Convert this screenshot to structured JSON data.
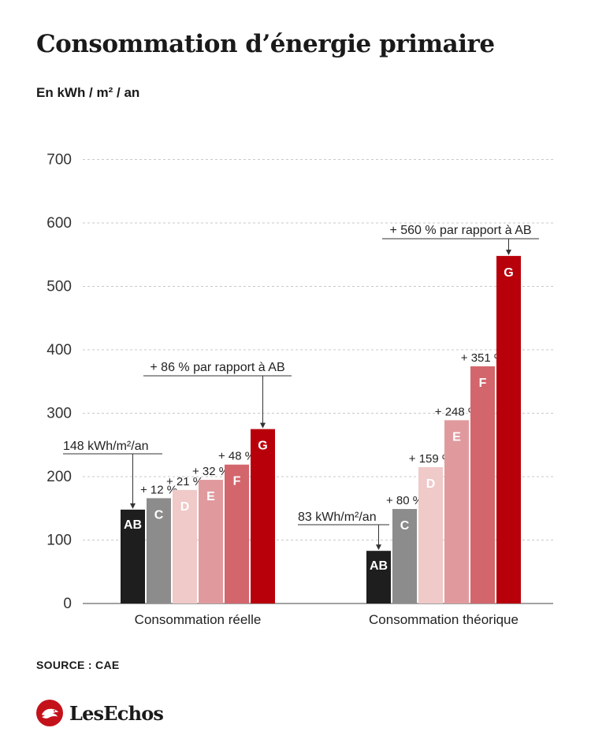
{
  "header": {
    "title": "Consommation d’énergie primaire",
    "subtitle": "En kWh / m² / an"
  },
  "footer": {
    "source": "SOURCE : CAE",
    "brand": "LesEchos"
  },
  "colors": {
    "AB": "#1e1e1e",
    "C": "#8c8c8c",
    "D": "#f0c9c9",
    "E": "#e09a9e",
    "F": "#d3666c",
    "G": "#b8000b",
    "grid": "#c8c8c8",
    "text": "#1a1a1a",
    "brand_red": "#c4121b"
  },
  "chart_data": {
    "type": "bar",
    "title": "Consommation d’énergie primaire",
    "ylabel": "En kWh / m² / an",
    "ylim": [
      0,
      700
    ],
    "yticks": [
      0,
      100,
      200,
      300,
      400,
      500,
      600,
      700
    ],
    "grid": true,
    "series_labels": [
      "AB",
      "C",
      "D",
      "E",
      "F",
      "G"
    ],
    "groups": [
      {
        "name": "Consommation réelle",
        "values": [
          148,
          166,
          179,
          195,
          219,
          275
        ],
        "increase_labels": [
          "",
          "+ 12 %",
          "+ 21 %",
          "+ 32 %",
          "+ 48 %",
          ""
        ],
        "base_annotation": "148 kWh/m²/an",
        "top_annotation": "+ 86 % par rapport à AB"
      },
      {
        "name": "Consommation théorique",
        "values": [
          83,
          149,
          215,
          289,
          374,
          548
        ],
        "increase_labels": [
          "",
          "+ 80 %",
          "+ 159 %",
          "+ 248 %",
          "+ 351 %",
          ""
        ],
        "base_annotation": "83 kWh/m²/an",
        "top_annotation": "+ 560 % par rapport à AB"
      }
    ]
  }
}
